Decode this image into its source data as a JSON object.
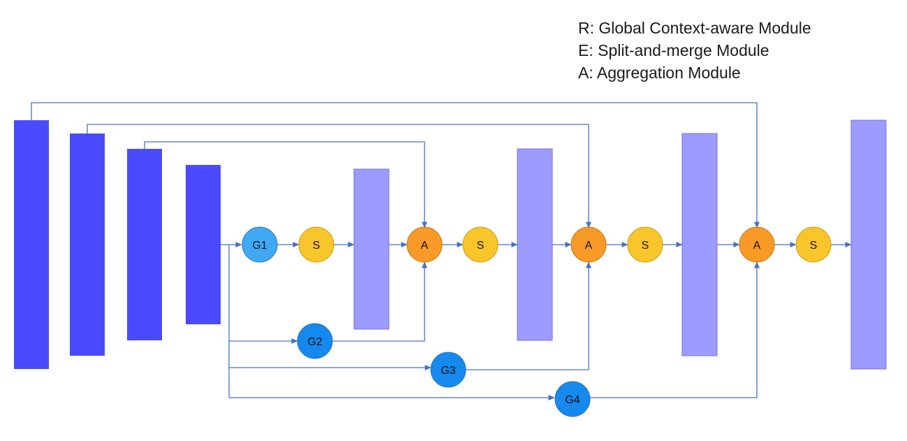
{
  "legend": [
    "R: Global Context-aware Module",
    "E: Split-and-merge Module",
    "A: Aggregation Module"
  ],
  "nodes": {
    "g1": "G1",
    "g2": "G2",
    "g3": "G3",
    "g4": "G4",
    "s1": "S",
    "s2": "S",
    "s3": "S",
    "s4": "S",
    "a1": "A",
    "a2": "A",
    "a3": "A"
  },
  "colors": {
    "encoder_block": "#4A4AFF",
    "decoder_block": "#9C9CFF",
    "decoder_block_border": "#7070E0",
    "g1_node": "#3FA9F5",
    "g_nodes": "#1589EE",
    "s_node": "#F8C52A",
    "a_node": "#F89A27",
    "connector": "#4472C4"
  }
}
